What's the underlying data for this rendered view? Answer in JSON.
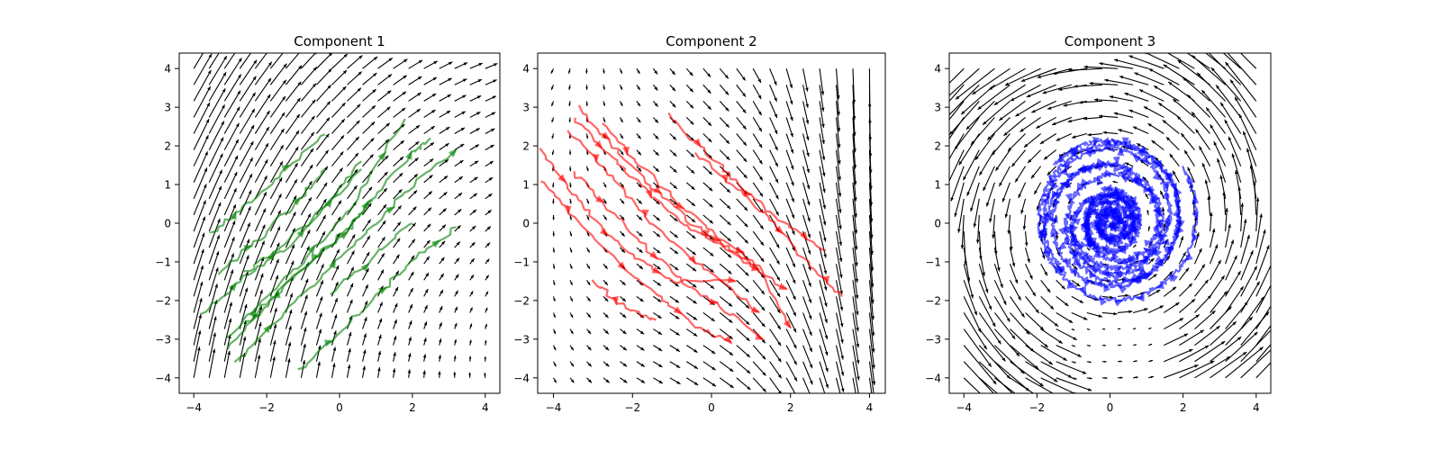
{
  "chart_data": [
    {
      "type": "quiver+trajectories",
      "title": "Component 1",
      "xlim": [
        -4.4,
        4.4
      ],
      "ylim": [
        -4.4,
        4.4
      ],
      "xticks": [
        -4,
        -2,
        0,
        2,
        4
      ],
      "yticks": [
        -4,
        -3,
        -2,
        -1,
        0,
        1,
        2,
        3,
        4
      ],
      "grid": false,
      "field_color": "#000000",
      "trajectory_color": "#008000",
      "trajectories": [
        [
          [
            -3.6,
            -0.3
          ],
          [
            -2.6,
            0.4
          ],
          [
            -1.6,
            1.3
          ],
          [
            -0.4,
            2.3
          ]
        ],
        [
          [
            -3.3,
            -1.3
          ],
          [
            -2.2,
            -0.4
          ],
          [
            -1.2,
            0.5
          ],
          [
            -0.4,
            1.4
          ]
        ],
        [
          [
            -3.8,
            -2.4
          ],
          [
            -2.6,
            -1.4
          ],
          [
            -1.4,
            -0.6
          ],
          [
            0.6,
            1.4
          ]
        ],
        [
          [
            -2.6,
            -1.3
          ],
          [
            -1.6,
            -0.6
          ],
          [
            -0.4,
            0.4
          ],
          [
            0.6,
            1.6
          ]
        ],
        [
          [
            -3.1,
            -3.0
          ],
          [
            -2.1,
            -2.0
          ],
          [
            -0.9,
            -0.9
          ],
          [
            0.3,
            0.4
          ],
          [
            1.8,
            2.7
          ]
        ],
        [
          [
            -2.6,
            -2.6
          ],
          [
            -1.4,
            -1.5
          ],
          [
            0.0,
            -0.4
          ],
          [
            0.9,
            0.6
          ]
        ],
        [
          [
            -3.1,
            -3.2
          ],
          [
            -2.0,
            -2.1
          ],
          [
            -0.8,
            -1.0
          ],
          [
            0.3,
            -0.1
          ],
          [
            1.2,
            1.0
          ],
          [
            2.0,
            1.8
          ],
          [
            2.5,
            2.2
          ]
        ],
        [
          [
            -2.9,
            -3.6
          ],
          [
            -1.6,
            -2.4
          ],
          [
            -0.3,
            -1.2
          ],
          [
            0.8,
            -0.2
          ],
          [
            1.9,
            0.9
          ],
          [
            3.2,
            1.9
          ]
        ],
        [
          [
            -0.2,
            -1.8
          ],
          [
            1.0,
            -0.8
          ],
          [
            2.0,
            0.0
          ]
        ],
        [
          [
            -1.1,
            -3.8
          ],
          [
            0.0,
            -2.8
          ],
          [
            1.0,
            -1.9
          ],
          [
            2.1,
            -0.9
          ],
          [
            3.2,
            -0.1
          ]
        ]
      ]
    },
    {
      "type": "quiver+trajectories",
      "title": "Component 2",
      "xlim": [
        -4.4,
        4.4
      ],
      "ylim": [
        -4.4,
        4.4
      ],
      "xticks": [
        -4,
        -2,
        0,
        2,
        4
      ],
      "yticks": [
        -4,
        -3,
        -2,
        -1,
        0,
        1,
        2,
        3,
        4
      ],
      "grid": false,
      "field_color": "#000000",
      "trajectory_color": "#ff0000",
      "trajectories": [
        [
          [
            -4.3,
            1.9
          ],
          [
            -3.6,
            0.9
          ],
          [
            -2.8,
            -0.1
          ],
          [
            -1.9,
            -0.9
          ],
          [
            -1.0,
            -1.5
          ],
          [
            0.6,
            -1.5
          ]
        ],
        [
          [
            -4.3,
            1.1
          ],
          [
            -3.4,
            0.1
          ],
          [
            -2.4,
            -1.0
          ],
          [
            -1.3,
            -1.9
          ],
          [
            -0.5,
            -2.6
          ],
          [
            0.5,
            -3.1
          ]
        ],
        [
          [
            -3.5,
            2.7
          ],
          [
            -2.6,
            1.8
          ],
          [
            -1.7,
            0.9
          ],
          [
            -0.7,
            0.0
          ],
          [
            0.3,
            -0.6
          ],
          [
            1.2,
            -1.2
          ]
        ],
        [
          [
            -3.6,
            2.4
          ],
          [
            -2.7,
            1.4
          ],
          [
            -1.8,
            0.3
          ],
          [
            -0.9,
            -0.6
          ],
          [
            0.0,
            -1.3
          ],
          [
            1.2,
            -2.3
          ]
        ],
        [
          [
            -3.4,
            3.0
          ],
          [
            -2.4,
            1.9
          ],
          [
            -1.5,
            0.9
          ],
          [
            -0.5,
            0.0
          ],
          [
            0.6,
            -0.8
          ],
          [
            1.9,
            -1.7
          ]
        ],
        [
          [
            -3.5,
            1.3
          ],
          [
            -2.6,
            0.4
          ],
          [
            -1.6,
            -0.7
          ],
          [
            -0.6,
            -1.6
          ],
          [
            0.6,
            -2.4
          ],
          [
            1.3,
            -3.0
          ]
        ],
        [
          [
            -2.8,
            2.6
          ],
          [
            -1.9,
            1.6
          ],
          [
            -0.9,
            0.6
          ],
          [
            0.1,
            -0.3
          ],
          [
            1.2,
            -1.1
          ],
          [
            2.0,
            -2.7
          ]
        ],
        [
          [
            -1.1,
            2.8
          ],
          [
            -0.1,
            1.8
          ],
          [
            0.8,
            0.9
          ],
          [
            1.8,
            0.0
          ],
          [
            2.9,
            -0.7
          ]
        ],
        [
          [
            -0.4,
            1.8
          ],
          [
            0.6,
            0.9
          ],
          [
            1.6,
            0.0
          ],
          [
            2.5,
            -1.1
          ],
          [
            3.3,
            -1.9
          ]
        ],
        [
          [
            -3.0,
            -1.5
          ],
          [
            -2.2,
            -2.2
          ],
          [
            -1.4,
            -2.5
          ]
        ]
      ]
    },
    {
      "type": "quiver+trajectories",
      "title": "Component 3",
      "xlim": [
        -4.4,
        4.4
      ],
      "ylim": [
        -4.4,
        4.4
      ],
      "xticks": [
        -4,
        -2,
        0,
        2,
        4
      ],
      "yticks": [
        -4,
        -3,
        -2,
        -1,
        0,
        1,
        2,
        3,
        4
      ],
      "grid": false,
      "field_color": "#000000",
      "trajectory_color": "#0000ff",
      "spirals": [
        {
          "cx": 0.1,
          "cy": 0.15,
          "r_start": 2.3,
          "r_end": 1.7,
          "theta_start": 0.6,
          "turns": 1.3,
          "direction": -1
        },
        {
          "cx": 0.0,
          "cy": 0.1,
          "r_start": 2.1,
          "r_end": 1.4,
          "theta_start": 2.4,
          "turns": 1.2,
          "direction": -1
        },
        {
          "cx": 0.1,
          "cy": 0.2,
          "r_start": 2.0,
          "r_end": 1.2,
          "theta_start": 4.0,
          "turns": 1.1,
          "direction": -1
        },
        {
          "cx": 0.2,
          "cy": 0.0,
          "r_start": 1.6,
          "r_end": 0.8,
          "theta_start": 5.3,
          "turns": 1.4,
          "direction": -1
        },
        {
          "cx": 0.0,
          "cy": -0.1,
          "r_start": 1.8,
          "r_end": 0.6,
          "theta_start": 3.3,
          "turns": 1.6,
          "direction": -1
        },
        {
          "cx": 0.0,
          "cy": 0.0,
          "r_start": 0.9,
          "r_end": 0.15,
          "theta_start": 1.8,
          "turns": 2.2,
          "direction": -1
        },
        {
          "cx": 0.05,
          "cy": 0.05,
          "r_start": 0.8,
          "r_end": 0.1,
          "theta_start": 4.2,
          "turns": 2.0,
          "direction": -1
        }
      ]
    }
  ]
}
